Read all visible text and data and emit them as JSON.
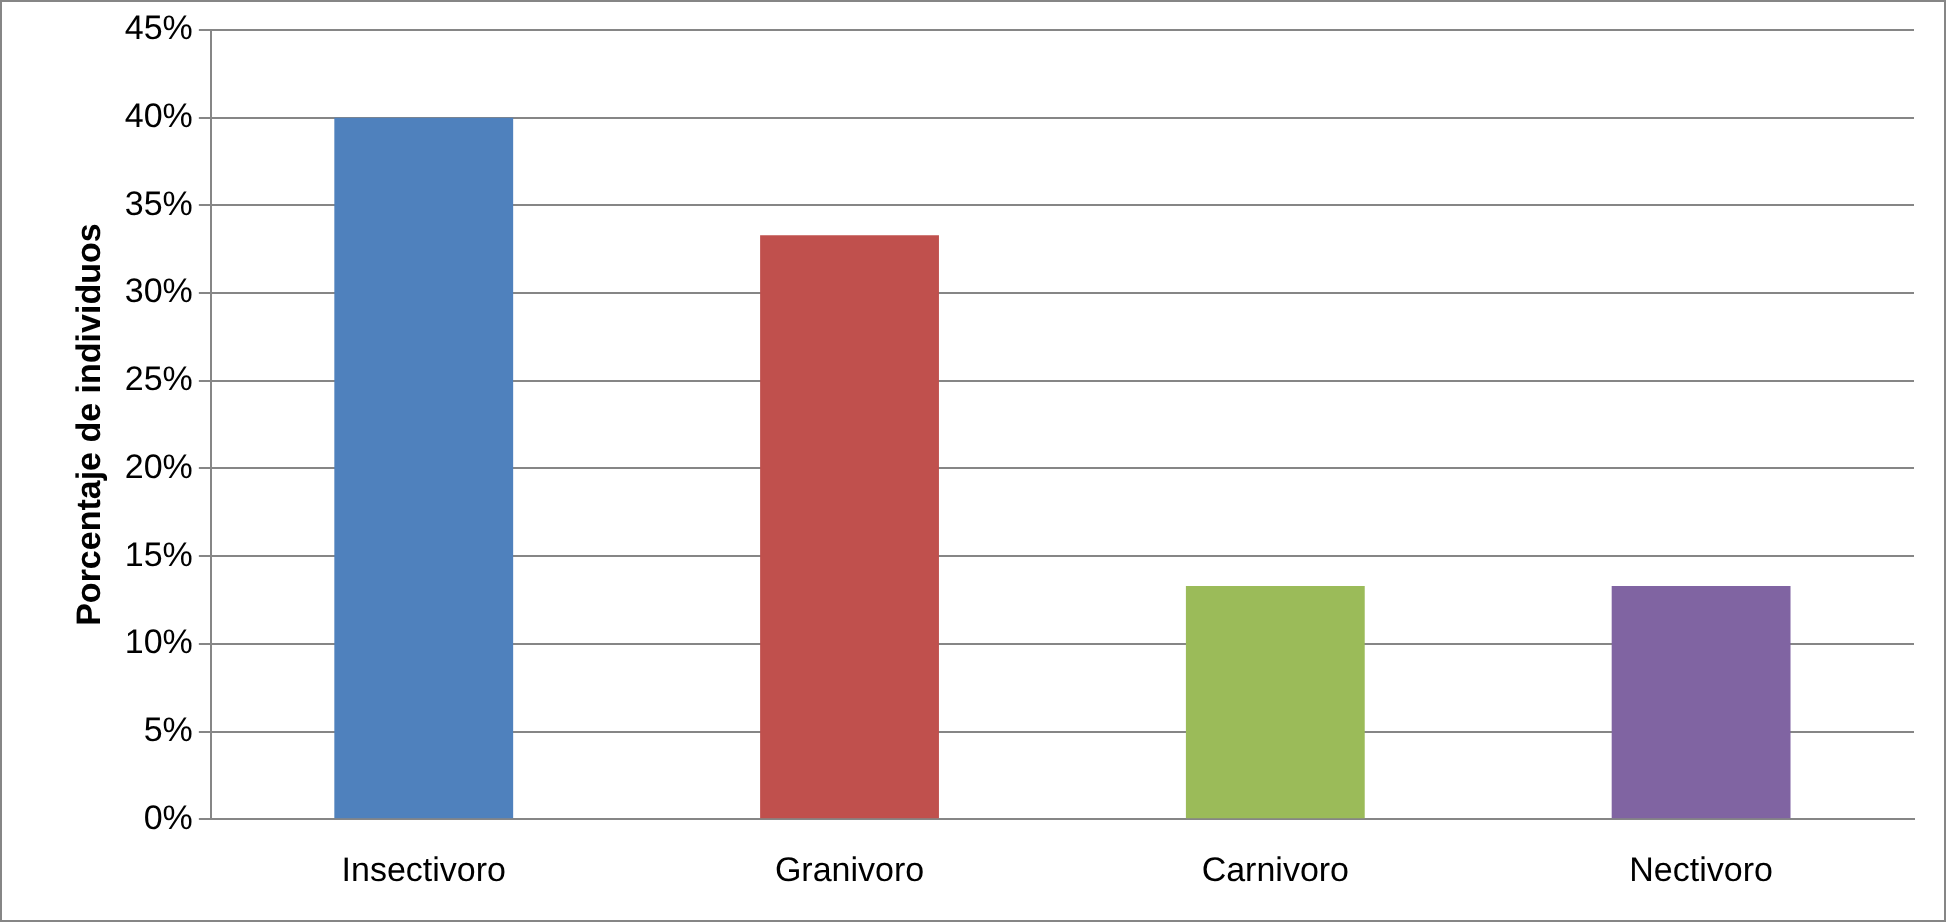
{
  "chart_data": {
    "type": "bar",
    "ylabel": "Porcentaje de individuos",
    "categories": [
      "Insectivoro",
      "Granivoro",
      "Carnivoro",
      "Nectivoro"
    ],
    "values": [
      40,
      33.3,
      13.3,
      13.3
    ],
    "colors": [
      "#4f81bd",
      "#c0504d",
      "#9bbb59",
      "#8064a2"
    ],
    "ylim": [
      0,
      45
    ],
    "yticks": [
      {
        "value": 0,
        "label": "0%"
      },
      {
        "value": 5,
        "label": "5%"
      },
      {
        "value": 10,
        "label": "10%"
      },
      {
        "value": 15,
        "label": "15%"
      },
      {
        "value": 20,
        "label": "20%"
      },
      {
        "value": 25,
        "label": "25%"
      },
      {
        "value": 30,
        "label": "30%"
      },
      {
        "value": 35,
        "label": "35%"
      },
      {
        "value": 40,
        "label": "40%"
      },
      {
        "value": 45,
        "label": "45%"
      }
    ],
    "grid": "y",
    "legend": false
  }
}
